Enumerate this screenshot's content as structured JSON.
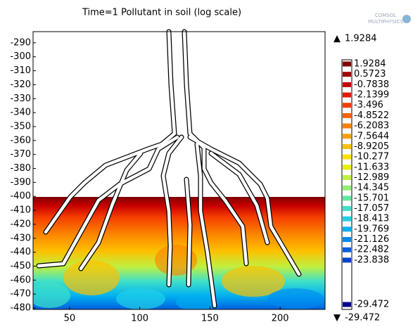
{
  "chart_data": {
    "type": "contour",
    "title": "Time=1  Pollutant in soil (log scale)",
    "logo": [
      "COMSOL",
      "MULTIPHYSICS"
    ],
    "xlim": [
      24,
      232
    ],
    "ylim": [
      -481,
      -282
    ],
    "xticks": [
      50,
      100,
      150,
      200
    ],
    "yticks": [
      -290,
      -300,
      -310,
      -320,
      -330,
      -340,
      -350,
      -360,
      -370,
      -380,
      -390,
      -400,
      -410,
      -420,
      -430,
      -440,
      -450,
      -460,
      -470,
      -480
    ],
    "max": 1.9284,
    "min": -29.472,
    "colorbar": {
      "levels": [
        1.9284,
        0.5723,
        -0.7838,
        -2.1399,
        -3.496,
        -4.8522,
        -6.2083,
        -7.5644,
        -8.9205,
        -10.277,
        -11.633,
        -12.989,
        -14.345,
        -15.701,
        -17.057,
        -18.413,
        -19.769,
        -21.126,
        -22.482,
        -23.838,
        -29.472
      ],
      "colors": [
        "#7f0000",
        "#a00000",
        "#c80000",
        "#e61a00",
        "#f53e00",
        "#f86000",
        "#fb8000",
        "#fca000",
        "#fdc000",
        "#fde000",
        "#e8f000",
        "#c0f040",
        "#90f070",
        "#60e8a0",
        "#40e0c8",
        "#20d0e8",
        "#00b0f0",
        "#0088f0",
        "#0060e0",
        "#0040d0",
        "#00008f"
      ]
    }
  }
}
